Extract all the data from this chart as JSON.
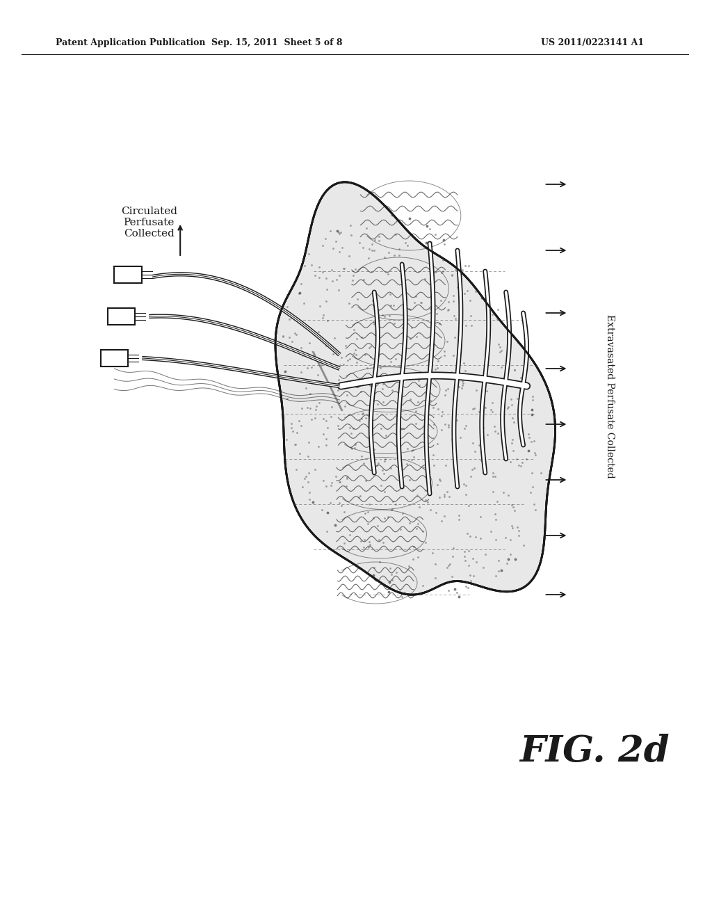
{
  "title_left": "Patent Application Publication",
  "title_mid": "Sep. 15, 2011  Sheet 5 of 8",
  "title_right": "US 2011/0223141 A1",
  "label_left": "Circulated\nPerfusate\nCollected",
  "label_right": "Extravasated Perfusate Collected",
  "fig_label": "FIG. 2d",
  "bg_color": "#ffffff",
  "ink_color": "#1a1a1a"
}
